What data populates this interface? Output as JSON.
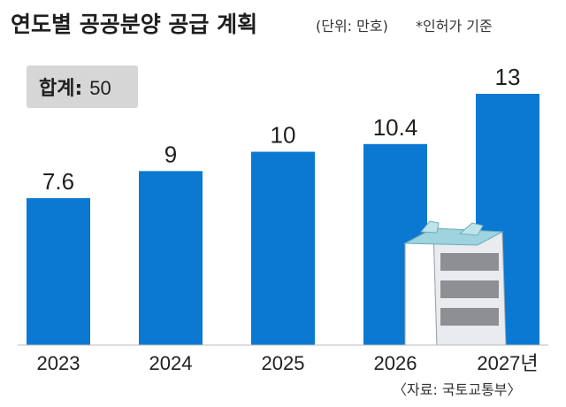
{
  "header": {
    "title": "연도별 공공분양 공급 계획",
    "unit": "(단위: 만호)",
    "note": "*인허가 기준"
  },
  "total": {
    "label": "합계:",
    "value": "50"
  },
  "source": "〈자료: 국토교통부〉",
  "colors": {
    "bar": "#0b78d1",
    "total_box": "#d6d6d6",
    "baseline": "#bbbbbb"
  },
  "chart_data": {
    "type": "bar",
    "categories": [
      "2023",
      "2024",
      "2025",
      "2026",
      "2027년"
    ],
    "values": [
      7.6,
      9,
      10,
      10.4,
      13
    ],
    "value_labels": [
      "7.6",
      "9",
      "10",
      "10.4",
      "13"
    ],
    "title": "연도별 공공분양 공급 계획",
    "xlabel": "",
    "ylabel": "",
    "ylim": [
      0,
      13
    ],
    "grid": false,
    "legend": "none"
  }
}
